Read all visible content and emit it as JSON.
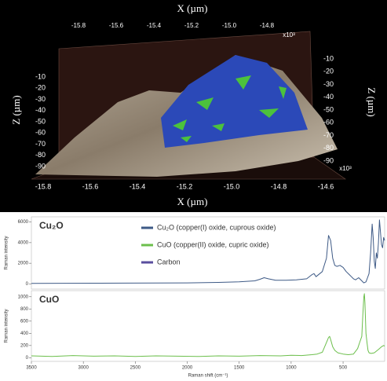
{
  "chart_data": [
    {
      "type": "surface",
      "xlabel": "X (µm)",
      "zlabel": "Z (µm)",
      "exponent_label": "x10³",
      "xticks": [
        -15.8,
        -15.6,
        -15.4,
        -15.2,
        {
          "value": -15,
          "label": "-15.0"
        },
        -14.8,
        -14.6
      ],
      "zticks": [
        -10,
        -20,
        -30,
        -40,
        -50,
        -60,
        -70,
        -80,
        -90
      ]
    },
    {
      "type": "line",
      "title": "Cu₂O",
      "ylabel": "Raman intensity",
      "xlim": [
        3500,
        100
      ],
      "ylim": [
        -500,
        6500
      ],
      "yticks": [
        0,
        2000,
        4000,
        6000
      ],
      "x": [
        3500,
        3200,
        2900,
        2600,
        2300,
        2000,
        1700,
        1500,
        1350,
        1300,
        1260,
        1220,
        1150,
        1050,
        950,
        850,
        800,
        780,
        760,
        700,
        660,
        640,
        620,
        600,
        580,
        560,
        530,
        500,
        470,
        440,
        420,
        400,
        380,
        350,
        320,
        300,
        280,
        265,
        250,
        235,
        220,
        210,
        200,
        190,
        180,
        170,
        160,
        150,
        140,
        130,
        120,
        110,
        100
      ],
      "series": [
        {
          "color": "#3e5a86",
          "values": [
            50,
            60,
            70,
            80,
            90,
            100,
            150,
            200,
            300,
            450,
            600,
            500,
            350,
            350,
            400,
            500,
            900,
            1000,
            700,
            1200,
            2500,
            4700,
            4200,
            2500,
            1800,
            1700,
            1800,
            1600,
            1200,
            900,
            700,
            500,
            400,
            600,
            300,
            100,
            200,
            600,
            1000,
            3000,
            5800,
            4500,
            2200,
            1500,
            3000,
            2500,
            4000,
            6200,
            5000,
            3800,
            3500,
            4500,
            4200
          ]
        }
      ],
      "legend": [
        {
          "name": "Cu₂O (copper(I) oxide, cuprous oxide)",
          "color": "#3e5a86"
        },
        {
          "name": "CuO (copper(II) oxide, cupric oxide)",
          "color": "#6cbf4c"
        },
        {
          "name": "Carbon",
          "color": "#5a4e9e"
        }
      ]
    },
    {
      "type": "line",
      "title": "CuO",
      "ylabel": "Raman intensity",
      "xlabel": "Raman shift (cm⁻¹)",
      "xlim": [
        3500,
        100
      ],
      "ylim": [
        -60,
        1100
      ],
      "yticks": [
        0,
        200,
        400,
        600,
        800,
        1000
      ],
      "xticks": [
        3500,
        3000,
        2500,
        2000,
        1500,
        1000,
        500
      ],
      "x": [
        3500,
        3300,
        3100,
        2900,
        2700,
        2500,
        2300,
        2100,
        1900,
        1700,
        1500,
        1300,
        1100,
        1000,
        900,
        800,
        750,
        700,
        660,
        640,
        630,
        620,
        600,
        580,
        550,
        500,
        450,
        400,
        360,
        340,
        320,
        310,
        300,
        295,
        290,
        280,
        270,
        260,
        250,
        230,
        200,
        170,
        150,
        130,
        110,
        100
      ],
      "series": [
        {
          "color": "#6cbf4c",
          "values": [
            30,
            20,
            35,
            25,
            30,
            20,
            30,
            25,
            20,
            30,
            25,
            35,
            30,
            40,
            35,
            50,
            60,
            90,
            250,
            330,
            350,
            300,
            180,
            120,
            80,
            60,
            50,
            60,
            150,
            250,
            350,
            700,
            1000,
            1050,
            900,
            400,
            250,
            120,
            80,
            70,
            80,
            120,
            150,
            180,
            200,
            190
          ]
        }
      ]
    }
  ]
}
